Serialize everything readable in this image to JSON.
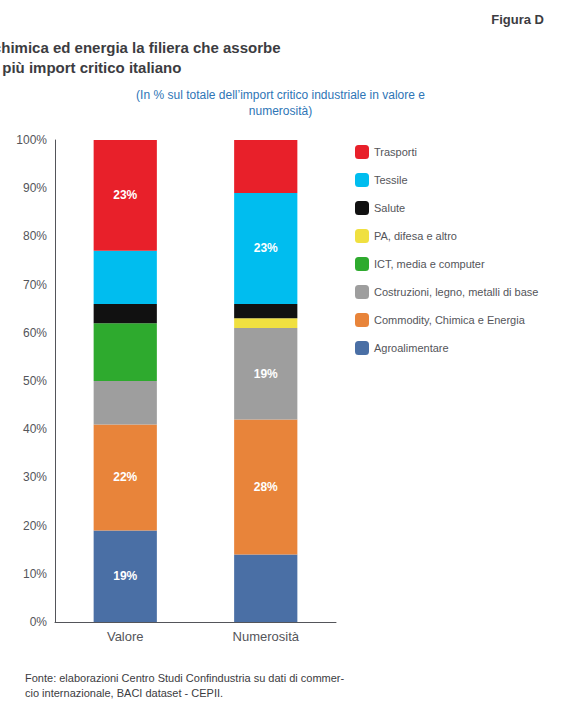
{
  "chart_data": {
    "type": "bar",
    "stacked": true,
    "title": "Commodity, chimica ed energia la filiera che assorbe\npiù import critico italiano",
    "subtitle": "(In % sul totale dell’import critico industriale in valore e\nnumerosità)",
    "annotations": [
      "Figura D",
      "Fonte: elaborazioni Centro Studi Confindustria su dati di commer-\ncio internazionale, BACI dataset - CEPII."
    ],
    "categories": [
      "Valore",
      "Numerosità"
    ],
    "series": [
      {
        "name": "Agroalimentare",
        "color": "#4A6FA5",
        "values": [
          19,
          14
        ],
        "value_labels": [
          "19%",
          null
        ]
      },
      {
        "name": "Commodity, Chimica e Energia",
        "color": "#E8843A",
        "values": [
          22,
          28
        ],
        "value_labels": [
          "22%",
          "28%"
        ]
      },
      {
        "name": "Costruzioni, legno, metalli di base",
        "color": "#9E9E9E",
        "values": [
          9,
          19
        ],
        "value_labels": [
          null,
          "19%"
        ]
      },
      {
        "name": "ICT, media e computer",
        "color": "#2EAA2E",
        "values": [
          12,
          0
        ],
        "value_labels": [
          null,
          null
        ]
      },
      {
        "name": "PA, difesa e altro",
        "color": "#F0E040",
        "values": [
          0,
          2
        ],
        "value_labels": [
          null,
          null
        ]
      },
      {
        "name": "Salute",
        "color": "#111111",
        "values": [
          4,
          3
        ],
        "value_labels": [
          null,
          null
        ]
      },
      {
        "name": "Tessile",
        "color": "#00BDEF",
        "values": [
          11,
          23
        ],
        "value_labels": [
          null,
          "23%"
        ]
      },
      {
        "name": "Trasporti",
        "color": "#E8202A",
        "values": [
          23,
          11
        ],
        "value_labels": [
          "23%",
          null
        ]
      }
    ],
    "ylim": [
      0,
      100
    ],
    "yticks": [
      {
        "value": 0,
        "label": "0%"
      },
      {
        "value": 10,
        "label": "10%"
      },
      {
        "value": 20,
        "label": "20%"
      },
      {
        "value": 30,
        "label": "30%"
      },
      {
        "value": 40,
        "label": "40%"
      },
      {
        "value": 50,
        "label": "50%"
      },
      {
        "value": 60,
        "label": "60%"
      },
      {
        "value": 70,
        "label": "70%"
      },
      {
        "value": 80,
        "label": "80%"
      },
      {
        "value": 90,
        "label": "90%"
      },
      {
        "value": 100,
        "label": "100%"
      }
    ],
    "data_labels": true,
    "grid": false,
    "legend": "right"
  }
}
